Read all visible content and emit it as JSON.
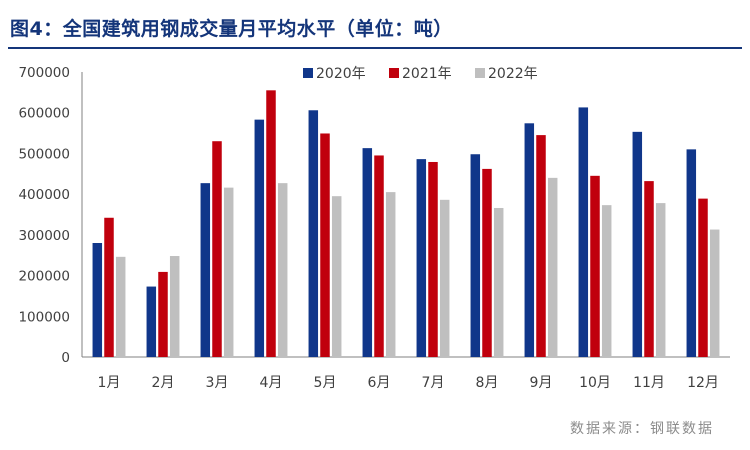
{
  "title": "图4：全国建筑用钢成交量月平均水平（单位：吨）",
  "source": "数据来源：钢联数据",
  "colors": {
    "s2020": "#10368a",
    "s2021": "#c0000d",
    "s2022": "#bfbfbf",
    "title": "#14357a"
  },
  "chart_data": {
    "type": "bar",
    "categories": [
      "1月",
      "2月",
      "3月",
      "4月",
      "5月",
      "6月",
      "7月",
      "8月",
      "9月",
      "10月",
      "11月",
      "12月"
    ],
    "series": [
      {
        "name": "2020年",
        "values": [
          280000,
          173000,
          427000,
          583000,
          606000,
          513000,
          486000,
          498000,
          574000,
          613000,
          553000,
          510000
        ]
      },
      {
        "name": "2021年",
        "values": [
          342000,
          209000,
          530000,
          655000,
          549000,
          495000,
          479000,
          462000,
          545000,
          445000,
          432000,
          389000
        ]
      },
      {
        "name": "2022年",
        "values": [
          246000,
          248000,
          416000,
          427000,
          395000,
          405000,
          386000,
          366000,
          440000,
          373000,
          378000,
          313000
        ]
      }
    ],
    "yticks": [
      "0",
      "100000",
      "200000",
      "300000",
      "400000",
      "500000",
      "600000",
      "700000"
    ],
    "ylim": [
      0,
      700000
    ],
    "legend": "top-center",
    "grid": false
  }
}
